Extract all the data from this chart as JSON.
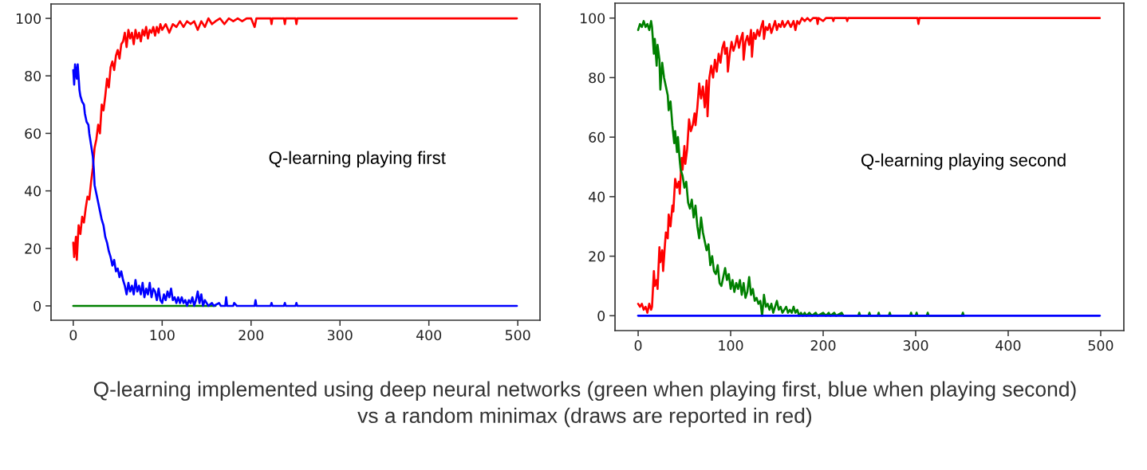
{
  "chart_data": [
    {
      "type": "line",
      "annotations": [
        "Q-learning playing first"
      ],
      "xlim": [
        -25,
        525
      ],
      "ylim": [
        -5,
        105
      ],
      "xticks": [
        0,
        100,
        200,
        300,
        400,
        500
      ],
      "yticks": [
        0,
        20,
        40,
        60,
        80,
        100
      ],
      "series": [
        {
          "color": "#ff0000",
          "x": [
            0,
            1,
            3,
            4,
            6,
            8,
            10,
            12,
            14,
            16,
            18,
            20,
            22,
            24,
            26,
            28,
            30,
            32,
            34,
            36,
            38,
            40,
            42,
            44,
            46,
            48,
            50,
            52,
            54,
            56,
            58,
            60,
            62,
            64,
            66,
            68,
            70,
            72,
            74,
            76,
            78,
            80,
            82,
            84,
            86,
            88,
            90,
            92,
            94,
            96,
            98,
            100,
            104,
            108,
            112,
            116,
            120,
            124,
            128,
            132,
            136,
            140,
            144,
            148,
            152,
            156,
            160,
            165,
            170,
            175,
            180,
            185,
            190,
            195,
            200,
            204,
            206,
            222,
            223,
            224,
            237,
            238,
            239,
            250,
            251,
            252,
            499
          ],
          "values": [
            22,
            17,
            24,
            16,
            28,
            25,
            31,
            29,
            34,
            38,
            37,
            43,
            48,
            55,
            58,
            63,
            60,
            70,
            68,
            73,
            79,
            76,
            83,
            85,
            82,
            87,
            89,
            86,
            91,
            92,
            95,
            90,
            96,
            93,
            95,
            91,
            96,
            93,
            95,
            92,
            96,
            94,
            97,
            93,
            96,
            95,
            97,
            94,
            97,
            95,
            98,
            96,
            98,
            95,
            98,
            97,
            99,
            97,
            99,
            98,
            99,
            96,
            99,
            97,
            100,
            98,
            99,
            100,
            98,
            100,
            99,
            100,
            99,
            100,
            100,
            97,
            100,
            100,
            98,
            100,
            100,
            98,
            100,
            100,
            98,
            100,
            100
          ]
        },
        {
          "color": "#008000",
          "x": [
            0,
            160
          ],
          "values": [
            0,
            0
          ]
        },
        {
          "color": "#0000ff",
          "x": [
            0,
            1,
            2,
            4,
            5,
            7,
            8,
            10,
            12,
            13,
            15,
            17,
            18,
            20,
            22,
            23,
            24,
            26,
            28,
            30,
            32,
            34,
            36,
            38,
            40,
            42,
            44,
            46,
            48,
            50,
            52,
            54,
            56,
            58,
            60,
            62,
            64,
            66,
            68,
            70,
            72,
            74,
            76,
            78,
            80,
            82,
            84,
            86,
            88,
            90,
            92,
            94,
            96,
            98,
            100,
            102,
            104,
            106,
            108,
            110,
            112,
            114,
            116,
            118,
            120,
            122,
            124,
            126,
            128,
            130,
            132,
            134,
            136,
            138,
            140,
            142,
            144,
            146,
            148,
            150,
            152,
            156,
            158,
            164,
            166,
            171,
            172,
            173,
            180,
            181,
            184,
            204,
            205,
            206,
            222,
            223,
            224,
            237,
            238,
            239,
            250,
            251,
            252,
            499
          ],
          "values": [
            82,
            77,
            84,
            79,
            84,
            75,
            73,
            71,
            70,
            67,
            64,
            63,
            60,
            56,
            52,
            48,
            42,
            39,
            36,
            33,
            30,
            28,
            24,
            22,
            19,
            17,
            14,
            16,
            12,
            13,
            10,
            12,
            9,
            7,
            4,
            8,
            5,
            7,
            4,
            9,
            5,
            7,
            4,
            8,
            3,
            6,
            4,
            8,
            3,
            6,
            5,
            2,
            6,
            2,
            1,
            4,
            2,
            5,
            3,
            6,
            2,
            3,
            1,
            3,
            1,
            3,
            1,
            2,
            0,
            2,
            1,
            3,
            0,
            2,
            5,
            1,
            4,
            0,
            2,
            1,
            0,
            1,
            0,
            1,
            0,
            0,
            3,
            0,
            0,
            1,
            0,
            0,
            2,
            0,
            0,
            1,
            0,
            0,
            1,
            0,
            0,
            1,
            0,
            0
          ]
        }
      ]
    },
    {
      "type": "line",
      "annotations": [
        "Q-learning playing second"
      ],
      "xlim": [
        -25,
        525
      ],
      "ylim": [
        -5,
        105
      ],
      "xticks": [
        0,
        100,
        200,
        300,
        400,
        500
      ],
      "yticks": [
        0,
        20,
        40,
        60,
        80,
        100
      ],
      "series": [
        {
          "color": "#ff0000",
          "x": [
            0,
            2,
            4,
            6,
            8,
            10,
            12,
            14,
            15,
            17,
            18,
            20,
            21,
            23,
            24,
            26,
            27,
            29,
            30,
            32,
            33,
            35,
            37,
            38,
            40,
            42,
            44,
            45,
            47,
            48,
            50,
            51,
            53,
            55,
            57,
            59,
            61,
            62,
            64,
            66,
            68,
            70,
            72,
            74,
            75,
            77,
            79,
            81,
            83,
            85,
            87,
            89,
            91,
            93,
            94,
            96,
            97,
            99,
            101,
            103,
            105,
            107,
            109,
            111,
            113,
            114,
            116,
            118,
            120,
            122,
            123,
            125,
            127,
            129,
            131,
            133,
            135,
            136,
            138,
            140,
            142,
            144,
            146,
            148,
            150,
            152,
            154,
            156,
            158,
            160,
            162,
            165,
            168,
            170,
            172,
            174,
            177,
            180,
            183,
            186,
            189,
            193,
            194,
            195,
            200,
            203,
            210,
            211,
            212,
            225,
            226,
            227,
            302,
            303,
            304,
            499
          ],
          "values": [
            4,
            3,
            4,
            2,
            3,
            1,
            4,
            2,
            3,
            15,
            10,
            12,
            9,
            23,
            18,
            22,
            15,
            24,
            28,
            26,
            34,
            30,
            37,
            35,
            46,
            43,
            45,
            41,
            53,
            49,
            57,
            51,
            56,
            66,
            62,
            64,
            68,
            64,
            70,
            78,
            73,
            77,
            70,
            79,
            67,
            80,
            84,
            80,
            86,
            82,
            88,
            85,
            90,
            92,
            88,
            90,
            82,
            88,
            92,
            89,
            91,
            94,
            90,
            93,
            95,
            86,
            92,
            94,
            91,
            96,
            87,
            95,
            93,
            96,
            94,
            97,
            99,
            93,
            97,
            96,
            98,
            95,
            97,
            99,
            96,
            98,
            97,
            99,
            97,
            98,
            99,
            97,
            99,
            96,
            99,
            98,
            100,
            99,
            100,
            99,
            100,
            100,
            98,
            100,
            99,
            100,
            100,
            99,
            100,
            100,
            99,
            100,
            100,
            98,
            100,
            100
          ]
        },
        {
          "color": "#008000",
          "x": [
            0,
            2,
            4,
            6,
            8,
            10,
            12,
            14,
            15,
            17,
            18,
            20,
            21,
            23,
            24,
            26,
            28,
            30,
            32,
            33,
            35,
            37,
            39,
            40,
            42,
            43,
            45,
            46,
            48,
            50,
            52,
            54,
            56,
            58,
            60,
            62,
            64,
            66,
            68,
            70,
            72,
            74,
            76,
            78,
            80,
            82,
            84,
            86,
            88,
            90,
            92,
            94,
            96,
            98,
            100,
            102,
            104,
            106,
            108,
            110,
            112,
            114,
            116,
            118,
            120,
            122,
            124,
            126,
            128,
            130,
            132,
            134,
            136,
            138,
            140,
            142,
            144,
            146,
            148,
            150,
            152,
            154,
            156,
            158,
            160,
            162,
            164,
            166,
            168,
            170,
            172,
            174,
            176,
            178,
            180,
            182,
            185,
            188,
            192,
            194,
            200,
            203,
            206,
            208,
            212,
            214,
            220,
            222,
            238,
            239,
            240,
            249,
            250,
            251,
            259,
            260,
            261,
            271,
            272,
            273,
            294,
            295,
            296,
            300,
            301,
            302,
            312,
            313,
            314,
            350,
            351,
            352
          ],
          "values": [
            96,
            98,
            97,
            99,
            97,
            98,
            96,
            99,
            97,
            88,
            93,
            84,
            91,
            86,
            76,
            85,
            80,
            77,
            74,
            69,
            72,
            64,
            58,
            62,
            55,
            60,
            52,
            49,
            47,
            43,
            45,
            38,
            36,
            39,
            33,
            37,
            30,
            26,
            33,
            28,
            25,
            22,
            24,
            17,
            20,
            15,
            14,
            17,
            11,
            10,
            13,
            16,
            12,
            14,
            9,
            12,
            8,
            11,
            9,
            12,
            7,
            11,
            6,
            8,
            13,
            7,
            9,
            5,
            6,
            4,
            5,
            0,
            7,
            3,
            4,
            2,
            4,
            1,
            3,
            5,
            2,
            3,
            1,
            2,
            3,
            1,
            2,
            1,
            3,
            1,
            2,
            0,
            1,
            0,
            1,
            0,
            1,
            0,
            1,
            0,
            1,
            0,
            1,
            0,
            1,
            0,
            1,
            0,
            0,
            1,
            0,
            0,
            1,
            0,
            0,
            1,
            0,
            0,
            1,
            0,
            0,
            1,
            0,
            0,
            1,
            0,
            0,
            1,
            0,
            0,
            1,
            0
          ]
        },
        {
          "color": "#0000ff",
          "x": [
            0,
            499
          ],
          "values": [
            0,
            0
          ]
        }
      ]
    },
    {
      "type": "other",
      "annotations": [
        "Q-learning implemented using deep neural networks (green when playing first, blue when playing second)\nvs a random minimax (draws are reported in red)"
      ]
    }
  ]
}
